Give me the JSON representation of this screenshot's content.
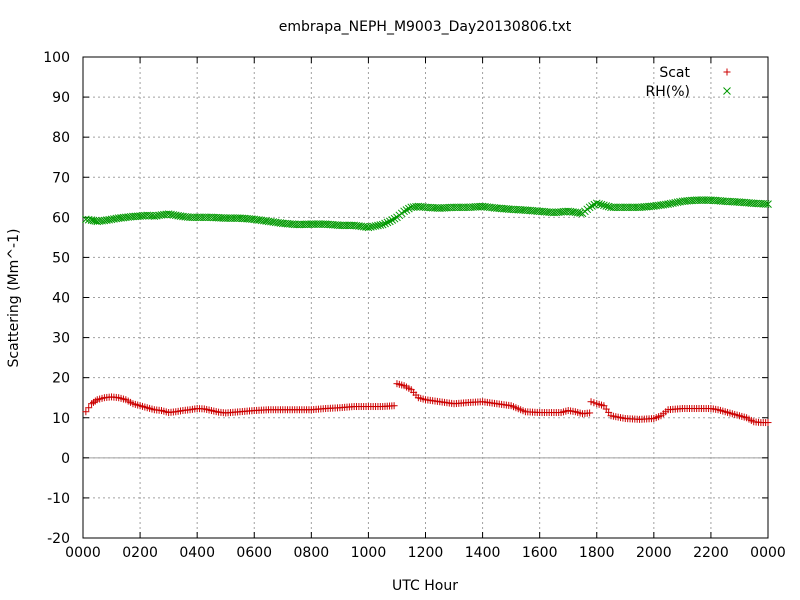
{
  "chart_data": {
    "type": "scatter",
    "title": "embrapa_NEPH_M9003_Day20130806.txt",
    "xlabel": "UTC Hour",
    "ylabel": "Scattering (Mm^-1)",
    "xlim": [
      0,
      24
    ],
    "ylim": [
      -20,
      100
    ],
    "x_ticks": [
      0,
      2,
      4,
      6,
      8,
      10,
      12,
      14,
      16,
      18,
      20,
      22,
      24
    ],
    "x_tick_labels": [
      "0000",
      "0200",
      "0400",
      "0600",
      "0800",
      "1000",
      "1200",
      "1400",
      "1600",
      "1800",
      "2000",
      "2200",
      "0000"
    ],
    "y_ticks": [
      -20,
      -10,
      0,
      10,
      20,
      30,
      40,
      50,
      60,
      70,
      80,
      90,
      100
    ],
    "y_tick_labels": [
      "-20",
      "-10",
      "0",
      "10",
      "20",
      "30",
      "40",
      "50",
      "60",
      "70",
      "80",
      "90",
      "100"
    ],
    "grid": true,
    "legend_position": "top-right",
    "series": [
      {
        "name": "Scat",
        "marker": "plus",
        "color": "#cc0000",
        "x": [
          0.1,
          0.3,
          0.5,
          0.75,
          1.0,
          1.25,
          1.5,
          1.75,
          2.0,
          2.25,
          2.5,
          2.75,
          3.0,
          3.25,
          3.5,
          3.75,
          4.0,
          4.25,
          4.5,
          4.75,
          5.0,
          5.5,
          6.0,
          6.5,
          7.0,
          7.5,
          8.0,
          8.5,
          9.0,
          9.5,
          10.0,
          10.5,
          10.9,
          11.0,
          11.25,
          11.5,
          11.75,
          12.0,
          12.5,
          13.0,
          13.5,
          14.0,
          14.5,
          15.0,
          15.5,
          16.0,
          16.5,
          16.75,
          17.0,
          17.25,
          17.5,
          17.75,
          17.8,
          18.0,
          18.25,
          18.5,
          19.0,
          19.5,
          20.0,
          20.25,
          20.5,
          21.0,
          21.5,
          22.0,
          22.25,
          22.5,
          22.75,
          23.0,
          23.25,
          23.5,
          23.75,
          24.0
        ],
        "y": [
          11.5,
          13.5,
          14.5,
          15.0,
          15.2,
          15.0,
          14.5,
          13.5,
          13.0,
          12.5,
          12.0,
          11.8,
          11.3,
          11.5,
          11.8,
          12.0,
          12.3,
          12.2,
          11.8,
          11.4,
          11.2,
          11.5,
          11.8,
          12.0,
          12.0,
          12.0,
          12.0,
          12.3,
          12.5,
          12.8,
          12.8,
          12.8,
          13.0,
          18.5,
          18.0,
          17.0,
          15.0,
          14.5,
          14.0,
          13.5,
          13.8,
          14.0,
          13.5,
          13.0,
          11.5,
          11.3,
          11.3,
          11.3,
          11.8,
          11.5,
          11.0,
          11.2,
          14.0,
          13.5,
          13.0,
          10.5,
          9.8,
          9.6,
          9.8,
          10.5,
          12.0,
          12.3,
          12.3,
          12.3,
          12.0,
          11.5,
          11.0,
          10.5,
          10.0,
          9.0,
          8.8,
          8.8
        ]
      },
      {
        "name": "RH(%)",
        "marker": "cross",
        "color": "#009900",
        "x": [
          0.1,
          0.3,
          0.5,
          0.75,
          1.0,
          1.25,
          1.5,
          1.75,
          2.0,
          2.25,
          2.5,
          2.75,
          3.0,
          3.25,
          3.5,
          3.75,
          4.0,
          4.5,
          5.0,
          5.5,
          6.0,
          6.5,
          7.0,
          7.5,
          8.0,
          8.5,
          9.0,
          9.5,
          10.0,
          10.5,
          10.75,
          11.0,
          11.25,
          11.5,
          11.75,
          12.0,
          12.5,
          13.0,
          13.5,
          14.0,
          14.5,
          15.0,
          15.5,
          16.0,
          16.5,
          17.0,
          17.5,
          17.75,
          18.0,
          18.25,
          18.5,
          19.0,
          19.5,
          20.0,
          20.5,
          21.0,
          21.5,
          22.0,
          22.5,
          23.0,
          23.5,
          24.0
        ],
        "y": [
          59.5,
          59.3,
          59.0,
          59.2,
          59.5,
          59.8,
          60.0,
          60.2,
          60.3,
          60.5,
          60.3,
          60.6,
          60.8,
          60.5,
          60.2,
          60.0,
          60.0,
          60.0,
          59.8,
          59.8,
          59.5,
          59.0,
          58.5,
          58.2,
          58.3,
          58.3,
          58.0,
          58.0,
          57.5,
          58.2,
          59.0,
          60.0,
          61.5,
          62.5,
          62.7,
          62.5,
          62.3,
          62.5,
          62.5,
          62.7,
          62.3,
          62.0,
          61.8,
          61.5,
          61.2,
          61.5,
          61.0,
          62.5,
          63.5,
          63.0,
          62.5,
          62.5,
          62.5,
          62.8,
          63.3,
          64.0,
          64.3,
          64.3,
          64.0,
          63.8,
          63.5,
          63.3
        ]
      }
    ]
  }
}
